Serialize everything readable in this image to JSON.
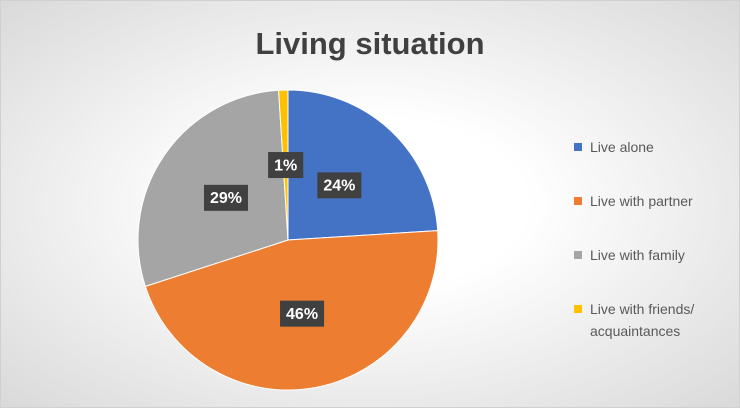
{
  "chart_data": {
    "type": "pie",
    "title": "Living situation",
    "categories": [
      "Live alone",
      "Live with partner",
      "Live with family",
      "Live with friends/ acquaintances"
    ],
    "values": [
      24,
      46,
      29,
      1
    ],
    "value_labels": [
      "24%",
      "46%",
      "29%",
      "1%"
    ],
    "colors": [
      "#4472c4",
      "#ed7d31",
      "#a5a5a5",
      "#ffc000"
    ],
    "legend": "right"
  }
}
